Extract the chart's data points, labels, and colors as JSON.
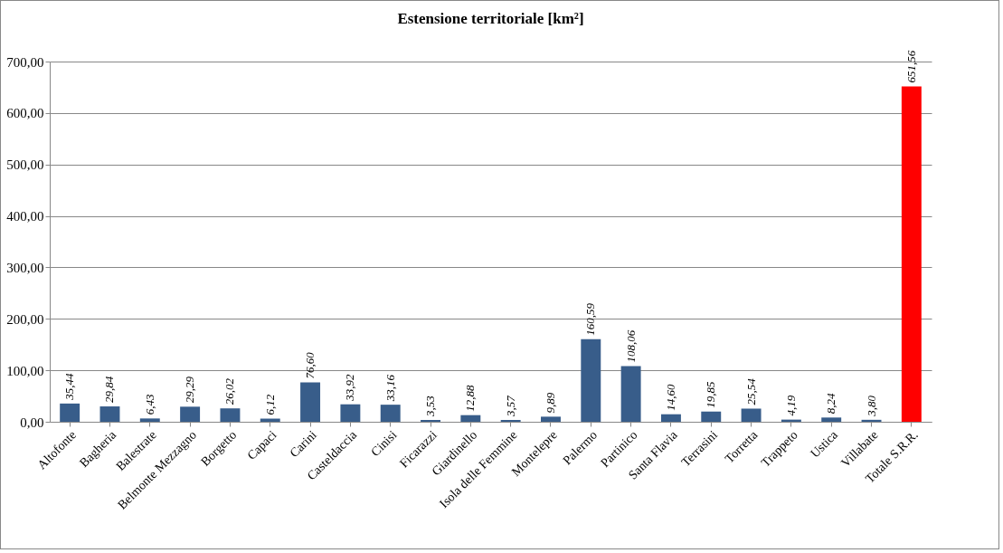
{
  "chart_data": {
    "type": "bar",
    "title": "Estensione territoriale [km²]",
    "categories": [
      "Altofonte",
      "Bagheria",
      "Balestrate",
      "Belmonte Mezzagno",
      "Borgetto",
      "Capaci",
      "Carini",
      "Casteldaccia",
      "Cinisi",
      "Ficarazzi",
      "Giardinello",
      "Isola delle Femmine",
      "Montelepre",
      "Palermo",
      "Partinico",
      "Santa Flavia",
      "Terrasini",
      "Torretta",
      "Trappeto",
      "Ustica",
      "Villabate",
      "Totale S.R.R."
    ],
    "values": [
      35.44,
      29.84,
      6.43,
      29.29,
      26.02,
      6.12,
      76.6,
      33.92,
      33.16,
      3.53,
      12.88,
      3.57,
      9.89,
      160.59,
      108.06,
      14.6,
      19.85,
      25.54,
      4.19,
      8.24,
      3.8,
      651.56
    ],
    "value_labels": [
      "35,44",
      "29,84",
      "6,43",
      "29,29",
      "26,02",
      "6,12",
      "76,60",
      "33,92",
      "33,16",
      "3,53",
      "12,88",
      "3,57",
      "9,89",
      "160,59",
      "108,06",
      "14,60",
      "19,85",
      "25,54",
      "4,19",
      "8,24",
      "3,80",
      "651,56"
    ],
    "colors": [
      "#385d8a",
      "#385d8a",
      "#385d8a",
      "#385d8a",
      "#385d8a",
      "#385d8a",
      "#385d8a",
      "#385d8a",
      "#385d8a",
      "#385d8a",
      "#385d8a",
      "#385d8a",
      "#385d8a",
      "#385d8a",
      "#385d8a",
      "#385d8a",
      "#385d8a",
      "#385d8a",
      "#385d8a",
      "#385d8a",
      "#385d8a",
      "#ff0000"
    ],
    "ylim": [
      0,
      700
    ],
    "yticks": [
      {
        "value": 0,
        "label": "0,00"
      },
      {
        "value": 100,
        "label": "100,00"
      },
      {
        "value": 200,
        "label": "200,00"
      },
      {
        "value": 300,
        "label": "300,00"
      },
      {
        "value": 400,
        "label": "400,00"
      },
      {
        "value": 500,
        "label": "500,00"
      },
      {
        "value": 600,
        "label": "600,00"
      },
      {
        "value": 700,
        "label": "700,00"
      }
    ],
    "grid": "y",
    "legend": false
  }
}
